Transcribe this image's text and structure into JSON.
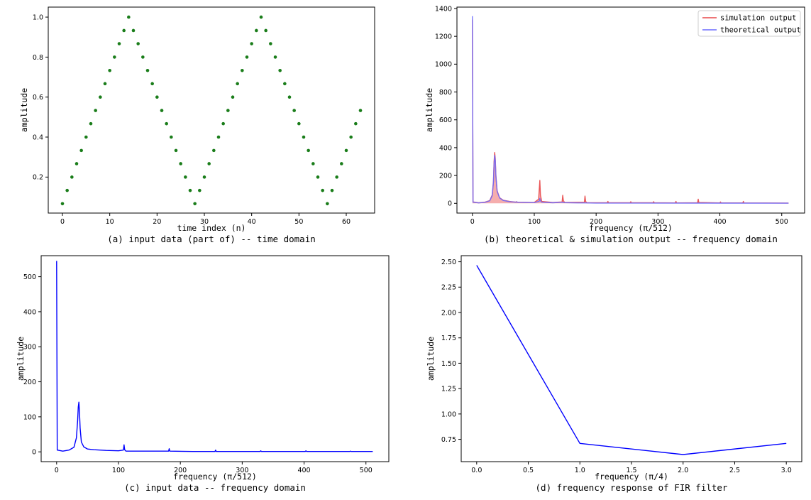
{
  "chart_data": [
    {
      "id": "a",
      "type": "scatter",
      "caption": "(a) input data (part of) -- time domain",
      "xlabel": "time index (n)",
      "ylabel": "amplitude",
      "xlim": [
        -3,
        66
      ],
      "ylim": [
        0.02,
        1.05
      ],
      "xticks": [
        0,
        10,
        20,
        30,
        40,
        50,
        60
      ],
      "yticks": [
        0.2,
        0.4,
        0.6,
        0.8,
        1.0
      ],
      "ytick_decimals": 1,
      "grid": false,
      "series": [
        {
          "color": "#1a7d1a",
          "x": [
            0,
            1,
            2,
            3,
            4,
            5,
            6,
            7,
            8,
            9,
            10,
            11,
            12,
            13,
            14,
            15,
            16,
            17,
            18,
            19,
            20,
            21,
            22,
            23,
            24,
            25,
            26,
            27,
            28,
            29,
            30,
            31,
            32,
            33,
            34,
            35,
            36,
            37,
            38,
            39,
            40,
            41,
            42,
            43,
            44,
            45,
            46,
            47,
            48,
            49,
            50,
            51,
            52,
            53,
            54,
            55,
            56,
            57,
            58,
            59,
            60,
            61,
            62,
            63
          ],
          "y": [
            0.067,
            0.133,
            0.2,
            0.267,
            0.333,
            0.4,
            0.467,
            0.533,
            0.6,
            0.667,
            0.733,
            0.8,
            0.867,
            0.933,
            1.0,
            0.933,
            0.867,
            0.8,
            0.733,
            0.667,
            0.6,
            0.533,
            0.467,
            0.4,
            0.333,
            0.267,
            0.2,
            0.133,
            0.067,
            0.133,
            0.2,
            0.267,
            0.333,
            0.4,
            0.467,
            0.533,
            0.6,
            0.667,
            0.733,
            0.8,
            0.867,
            0.933,
            1.0,
            0.933,
            0.867,
            0.8,
            0.733,
            0.667,
            0.6,
            0.533,
            0.467,
            0.4,
            0.333,
            0.267,
            0.2,
            0.133,
            0.067,
            0.133,
            0.2,
            0.267,
            0.333,
            0.4,
            0.467,
            0.533
          ]
        }
      ]
    },
    {
      "id": "b",
      "type": "line",
      "caption": "(b) theoretical & simulation output -- frequency domain",
      "xlabel": "frequency (π/512)",
      "ylabel": "amplitude",
      "xlim": [
        -25,
        537
      ],
      "ylim": [
        -70,
        1410
      ],
      "xticks": [
        0,
        100,
        200,
        300,
        400,
        500
      ],
      "yticks": [
        0,
        200,
        400,
        600,
        800,
        1000,
        1200,
        1400
      ],
      "ytick_decimals": 0,
      "grid": false,
      "legend_position": "top-right",
      "series": [
        {
          "name": "simulation output",
          "color": "#e8494a",
          "opacity": 0.9,
          "fill": true,
          "points": [
            [
              0,
              1320
            ],
            [
              1,
              10
            ],
            [
              10,
              4
            ],
            [
              20,
              8
            ],
            [
              28,
              20
            ],
            [
              32,
              60
            ],
            [
              34,
              160
            ],
            [
              35,
              300
            ],
            [
              36,
              365
            ],
            [
              37,
              320
            ],
            [
              38,
              200
            ],
            [
              40,
              90
            ],
            [
              44,
              40
            ],
            [
              50,
              22
            ],
            [
              60,
              14
            ],
            [
              70,
              9
            ],
            [
              71,
              12
            ],
            [
              72,
              8
            ],
            [
              100,
              6
            ],
            [
              107,
              30
            ],
            [
              109,
              165
            ],
            [
              110,
              60
            ],
            [
              112,
              14
            ],
            [
              130,
              6
            ],
            [
              145,
              10
            ],
            [
              146,
              58
            ],
            [
              147,
              20
            ],
            [
              149,
              6
            ],
            [
              181,
              8
            ],
            [
              182,
              52
            ],
            [
              183,
              14
            ],
            [
              185,
              4
            ],
            [
              218,
              4
            ],
            [
              219,
              14
            ],
            [
              220,
              4
            ],
            [
              255,
              4
            ],
            [
              256,
              12
            ],
            [
              257,
              4
            ],
            [
              292,
              4
            ],
            [
              293,
              12
            ],
            [
              294,
              4
            ],
            [
              328,
              3
            ],
            [
              329,
              14
            ],
            [
              330,
              3
            ],
            [
              364,
              4
            ],
            [
              365,
              30
            ],
            [
              366,
              6
            ],
            [
              400,
              3
            ],
            [
              401,
              10
            ],
            [
              402,
              3
            ],
            [
              437,
              3
            ],
            [
              438,
              14
            ],
            [
              439,
              3
            ],
            [
              511,
              2
            ]
          ]
        },
        {
          "name": "theoretical output",
          "color": "#6b6bff",
          "opacity": 0.9,
          "fill": false,
          "points": [
            [
              0,
              1345
            ],
            [
              1,
              8
            ],
            [
              10,
              3
            ],
            [
              20,
              7
            ],
            [
              28,
              18
            ],
            [
              32,
              55
            ],
            [
              34,
              150
            ],
            [
              35,
              280
            ],
            [
              36,
              345
            ],
            [
              37,
              305
            ],
            [
              38,
              190
            ],
            [
              40,
              85
            ],
            [
              44,
              38
            ],
            [
              50,
              20
            ],
            [
              60,
              12
            ],
            [
              70,
              8
            ],
            [
              72,
              10
            ],
            [
              74,
              7
            ],
            [
              100,
              5
            ],
            [
              108,
              15
            ],
            [
              109,
              35
            ],
            [
              110,
              18
            ],
            [
              112,
              8
            ],
            [
              130,
              4
            ],
            [
              146,
              8
            ],
            [
              147,
              5
            ],
            [
              170,
              3
            ],
            [
              182,
              3
            ],
            [
              200,
              2
            ],
            [
              256,
              2
            ],
            [
              511,
              1
            ]
          ]
        }
      ]
    },
    {
      "id": "c",
      "type": "line",
      "caption": "(c) input data -- frequency domain",
      "xlabel": "frequency (π/512)",
      "ylabel": "amplitude",
      "xlim": [
        -25,
        537
      ],
      "ylim": [
        -28,
        560
      ],
      "xticks": [
        0,
        100,
        200,
        300,
        400,
        500
      ],
      "yticks": [
        0,
        100,
        200,
        300,
        400,
        500
      ],
      "ytick_decimals": 0,
      "grid": false,
      "series": [
        {
          "color": "#0000ff",
          "points": [
            [
              0,
              545
            ],
            [
              1,
              5
            ],
            [
              10,
              2
            ],
            [
              20,
              5
            ],
            [
              28,
              13
            ],
            [
              32,
              40
            ],
            [
              34,
              90
            ],
            [
              35,
              128
            ],
            [
              36,
              142
            ],
            [
              37,
              112
            ],
            [
              38,
              68
            ],
            [
              40,
              28
            ],
            [
              44,
              14
            ],
            [
              50,
              8
            ],
            [
              60,
              6
            ],
            [
              80,
              4
            ],
            [
              100,
              3
            ],
            [
              108,
              5
            ],
            [
              109,
              20
            ],
            [
              110,
              6
            ],
            [
              112,
              2
            ],
            [
              150,
              2
            ],
            [
              181,
              2
            ],
            [
              182,
              9
            ],
            [
              183,
              2
            ],
            [
              220,
              1
            ],
            [
              256,
              1
            ],
            [
              257,
              5
            ],
            [
              258,
              1
            ],
            [
              300,
              1
            ],
            [
              329,
              1
            ],
            [
              330,
              3
            ],
            [
              331,
              1
            ],
            [
              402,
              1
            ],
            [
              403,
              3
            ],
            [
              404,
              1
            ],
            [
              474,
              1
            ],
            [
              475,
              2
            ],
            [
              476,
              1
            ],
            [
              511,
              1
            ]
          ]
        }
      ]
    },
    {
      "id": "d",
      "type": "line",
      "caption": "(d) frequency response of FIR filter",
      "xlabel": "frequency (π/4)",
      "ylabel": "amplitude",
      "xlim": [
        -0.15,
        3.15
      ],
      "ylim": [
        0.53,
        2.56
      ],
      "xticks": [
        0.0,
        0.5,
        1.0,
        1.5,
        2.0,
        2.5,
        3.0
      ],
      "yticks": [
        0.75,
        1.0,
        1.25,
        1.5,
        1.75,
        2.0,
        2.25,
        2.5
      ],
      "xtick_decimals": 1,
      "ytick_decimals": 2,
      "grid": false,
      "series": [
        {
          "color": "#0000ff",
          "points": [
            [
              0,
              2.465
            ],
            [
              1,
              0.71
            ],
            [
              2,
              0.6
            ],
            [
              3,
              0.71
            ]
          ]
        }
      ]
    }
  ]
}
